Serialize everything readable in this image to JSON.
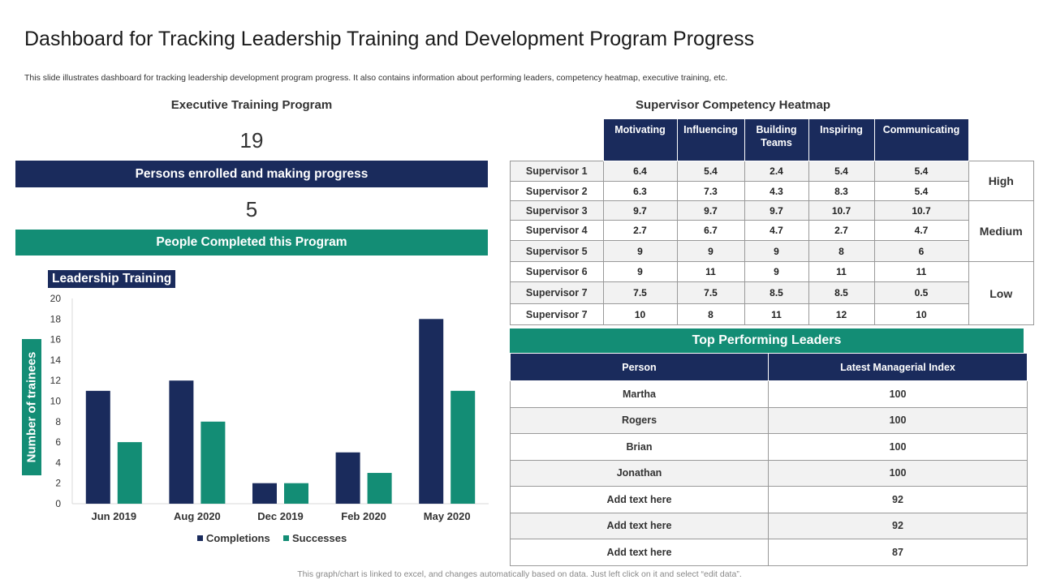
{
  "title": "Dashboard for Tracking Leadership Training and Development Program Progress",
  "subtitle": "This slide illustrates dashboard for tracking leadership development program progress. It also contains information about performing leaders, competency heatmap, executive training, etc.",
  "executive": {
    "heading": "Executive Training Program",
    "enrolled_count": "19",
    "enrolled_label": "Persons enrolled and making progress",
    "completed_count": "5",
    "completed_label": "People Completed this Program"
  },
  "colors": {
    "navy": "#1a2b5c",
    "teal": "#138d75"
  },
  "chart_data": {
    "type": "bar",
    "title": "Leadership Training",
    "xlabel": "",
    "ylabel": "Number of trainees",
    "categories": [
      "Jun 2019",
      "Aug 2020",
      "Dec 2019",
      "Feb 2020",
      "May 2020"
    ],
    "series": [
      {
        "name": "Completions",
        "color": "#1a2b5c",
        "values": [
          11,
          12,
          2,
          5,
          18
        ]
      },
      {
        "name": "Successes",
        "color": "#138d75",
        "values": [
          6,
          8,
          2,
          3,
          11
        ]
      }
    ],
    "ylim": [
      0,
      20
    ],
    "yticks": [
      0,
      2,
      4,
      6,
      8,
      10,
      12,
      14,
      16,
      18,
      20
    ],
    "legend": "bottom",
    "grid": false
  },
  "heatmap": {
    "heading": "Supervisor Competency Heatmap",
    "columns": [
      "Motivating",
      "Influencing",
      "Building Teams",
      "Inspiring",
      "Communicating"
    ],
    "rows": [
      {
        "name": "Supervisor 1",
        "values": [
          "6.4",
          "5.4",
          "2.4",
          "5.4",
          "5.4"
        ]
      },
      {
        "name": "Supervisor 2",
        "values": [
          "6.3",
          "7.3",
          "4.3",
          "8.3",
          "5.4"
        ]
      },
      {
        "name": "Supervisor 3",
        "values": [
          "9.7",
          "9.7",
          "9.7",
          "10.7",
          "10.7"
        ]
      },
      {
        "name": "Supervisor 4",
        "values": [
          "2.7",
          "6.7",
          "4.7",
          "2.7",
          "4.7"
        ]
      },
      {
        "name": "Supervisor 5",
        "values": [
          "9",
          "9",
          "9",
          "8",
          "6"
        ]
      },
      {
        "name": "Supervisor 6",
        "values": [
          "9",
          "11",
          "9",
          "11",
          "11"
        ]
      },
      {
        "name": "Supervisor 7",
        "values": [
          "7.5",
          "7.5",
          "8.5",
          "8.5",
          "0.5"
        ]
      },
      {
        "name": "Supervisor 7",
        "values": [
          "10",
          "8",
          "11",
          "12",
          "10"
        ]
      }
    ],
    "levels": [
      "High",
      "Medium",
      "Low"
    ]
  },
  "leaders": {
    "heading": "Top Performing Leaders",
    "columns": [
      "Person",
      "Latest Managerial Index"
    ],
    "rows": [
      [
        "Martha",
        "100"
      ],
      [
        "Rogers",
        "100"
      ],
      [
        "Brian",
        "100"
      ],
      [
        "Jonathan",
        "100"
      ],
      [
        "Add text here",
        "92"
      ],
      [
        "Add text here",
        "92"
      ],
      [
        "Add text here",
        "87"
      ]
    ]
  },
  "footer": "This graph/chart is linked to excel,  and changes automatically based on data. Just left click on it and select “edit data”."
}
